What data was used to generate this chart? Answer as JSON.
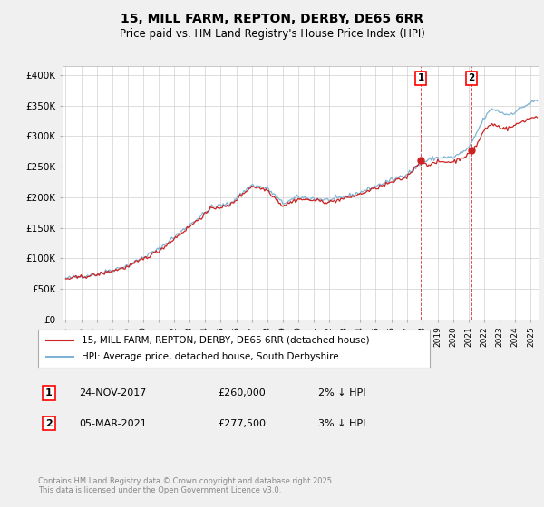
{
  "title": "15, MILL FARM, REPTON, DERBY, DE65 6RR",
  "subtitle": "Price paid vs. HM Land Registry's House Price Index (HPI)",
  "ylabel_ticks": [
    "£0",
    "£50K",
    "£100K",
    "£150K",
    "£200K",
    "£250K",
    "£300K",
    "£350K",
    "£400K"
  ],
  "ytick_values": [
    0,
    50000,
    100000,
    150000,
    200000,
    250000,
    300000,
    350000,
    400000
  ],
  "ylim": [
    0,
    415000
  ],
  "xlim_start": 1994.8,
  "xlim_end": 2025.5,
  "hpi_color": "#7fb3d3",
  "price_color": "#cc2222",
  "sale1_year": 2017.9,
  "sale1_price": 260000,
  "sale2_year": 2021.17,
  "sale2_price": 277500,
  "marker1_label": "1",
  "marker2_label": "2",
  "annotation1": [
    "1",
    "24-NOV-2017",
    "£260,000",
    "2% ↓ HPI"
  ],
  "annotation2": [
    "2",
    "05-MAR-2021",
    "£277,500",
    "3% ↓ HPI"
  ],
  "legend_line1": "15, MILL FARM, REPTON, DERBY, DE65 6RR (detached house)",
  "legend_line2": "HPI: Average price, detached house, South Derbyshire",
  "footer": "Contains HM Land Registry data © Crown copyright and database right 2025.\nThis data is licensed under the Open Government Licence v3.0.",
  "bg_color": "#f0f0f0",
  "plot_bg_color": "#ffffff"
}
